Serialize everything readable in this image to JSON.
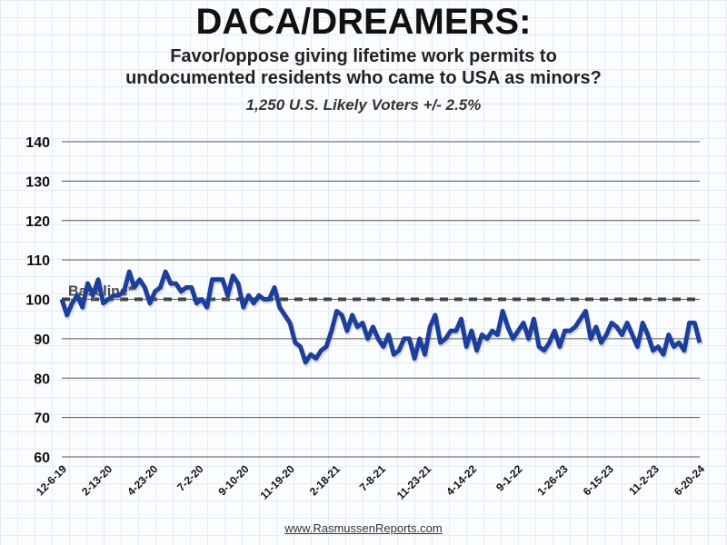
{
  "chart_data": {
    "type": "line",
    "title": "DACA/DREAMERS:",
    "subtitle": "Favor/oppose giving lifetime work permits to undocumented residents who came to USA as minors?",
    "subtitle_lines": [
      "Favor/oppose giving lifetime work permits to",
      "undocumented residents who came to USA as minors?"
    ],
    "note": "1,250 U.S. Likely Voters +/- 2.5%",
    "ylim": [
      60,
      140
    ],
    "yticks": [
      60,
      70,
      80,
      90,
      100,
      110,
      120,
      130,
      140
    ],
    "xticks": [
      "12-6-19",
      "2-13-20",
      "4-23-20",
      "7-2-20",
      "9-10-20",
      "11-19-20",
      "2-18-21",
      "7-8-21",
      "11-23-21",
      "4-14-22",
      "9-1-22",
      "1-26-23",
      "6-15-23",
      "11-2-23",
      "6-20-24"
    ],
    "grid": true,
    "baseline": {
      "label": "Baseline*",
      "value": 100
    },
    "series": [
      {
        "color": "#1c3f9e",
        "values": [
          100,
          96,
          99,
          101,
          98,
          104,
          101,
          105,
          99,
          100,
          101,
          101,
          102,
          107,
          103,
          105,
          103,
          99,
          102,
          103,
          107,
          104,
          104,
          102,
          103,
          103,
          99,
          100,
          98,
          105,
          105,
          105,
          101,
          106,
          104,
          98,
          101,
          99,
          101,
          100,
          100,
          103,
          98,
          96,
          94,
          89,
          88,
          84,
          86,
          85,
          87,
          88,
          92,
          97,
          96,
          92,
          96,
          93,
          94,
          90,
          93,
          90,
          88,
          91,
          86,
          87,
          90,
          90,
          85,
          90,
          86,
          93,
          96,
          89,
          90,
          92,
          92,
          95,
          88,
          92,
          87,
          91,
          90,
          92,
          91,
          97,
          93,
          90,
          92,
          94,
          90,
          95,
          88,
          87,
          89,
          92,
          88,
          92,
          92,
          93,
          95,
          97,
          90,
          93,
          89,
          91,
          94,
          93,
          91,
          94,
          91,
          88,
          94,
          91,
          87,
          88,
          86,
          91,
          88,
          89,
          87,
          94,
          94,
          89
        ]
      }
    ]
  },
  "footer": "www.RasmussenReports.com"
}
